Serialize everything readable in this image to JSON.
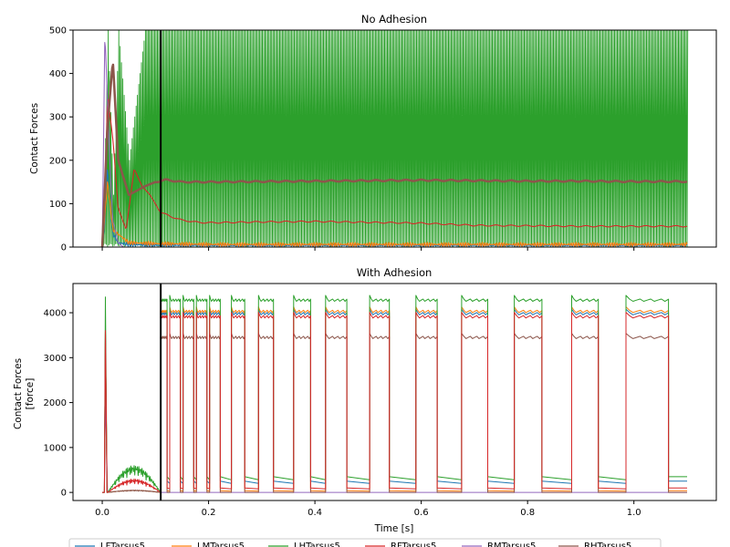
{
  "chart_data": [
    {
      "type": "line",
      "title": "No Adhesion",
      "xlabel": "",
      "ylabel": "Contact Forces",
      "xlim": [
        -0.055,
        1.155
      ],
      "ylim": [
        0,
        500
      ],
      "yticks": [
        0,
        100,
        200,
        300,
        400,
        500
      ],
      "vline_x": 0.11,
      "series": [
        {
          "name": "LFTarsus5",
          "color": "#1f77b4",
          "style": "noisy",
          "x": [
            0.0,
            0.005,
            0.01,
            0.015,
            0.02,
            0.03,
            0.05,
            0.08,
            0.11,
            0.2,
            0.4,
            0.6,
            0.8,
            1.0,
            1.1
          ],
          "y": [
            0,
            60,
            180,
            90,
            30,
            10,
            6,
            5,
            4,
            4,
            4,
            4,
            4,
            4,
            4
          ]
        },
        {
          "name": "LMTarsus5",
          "color": "#ff7f0e",
          "style": "noisy",
          "x": [
            0.0,
            0.01,
            0.02,
            0.05,
            0.1,
            0.2,
            0.4,
            0.6,
            0.8,
            1.0,
            1.1
          ],
          "y": [
            0,
            150,
            40,
            10,
            8,
            6,
            6,
            6,
            6,
            6,
            6
          ]
        },
        {
          "name": "LHTarsus5",
          "color": "#2ca02c",
          "style": "oscillating",
          "x": [
            0.0,
            0.01,
            0.02,
            0.03,
            0.05,
            0.08,
            0.11,
            1.1
          ],
          "y": [
            0,
            500,
            120,
            500,
            200,
            500,
            500,
            500
          ]
        },
        {
          "name": "RFTarsus5",
          "color": "#d62728",
          "style": "smooth",
          "x": [
            0.0,
            0.005,
            0.01,
            0.02,
            0.03,
            0.045,
            0.06,
            0.075,
            0.09,
            0.1,
            0.11,
            0.13,
            0.15,
            0.18,
            0.2,
            0.3,
            0.4,
            0.5,
            0.6,
            0.7,
            0.8,
            0.9,
            1.0,
            1.1
          ],
          "y": [
            0,
            120,
            350,
            250,
            90,
            40,
            180,
            140,
            120,
            100,
            80,
            70,
            62,
            57,
            56,
            58,
            59,
            57,
            55,
            50,
            49,
            48,
            48,
            48
          ]
        },
        {
          "name": "RMTarsus5",
          "color": "#9467bd",
          "style": "smooth",
          "x": [
            0.0,
            0.005,
            0.008,
            0.012,
            0.016,
            0.02,
            0.03,
            0.04,
            0.1,
            1.1
          ],
          "y": [
            0,
            500,
            400,
            260,
            150,
            60,
            10,
            0,
            0,
            0
          ]
        },
        {
          "name": "RHTarsus5",
          "color": "#8c564b",
          "style": "smooth",
          "x": [
            0.0,
            0.01,
            0.02,
            0.03,
            0.05,
            0.08,
            0.1,
            0.12,
            0.15,
            0.2,
            0.3,
            0.4,
            0.5,
            0.6,
            0.7,
            0.8,
            0.9,
            1.0,
            1.1
          ],
          "y": [
            0,
            280,
            430,
            200,
            120,
            140,
            150,
            155,
            150,
            150,
            151,
            152,
            153,
            154,
            153,
            152,
            152,
            151,
            151
          ]
        }
      ]
    },
    {
      "type": "line",
      "title": "With Adhesion",
      "xlabel": "Time [s]",
      "ylabel": "Contact Forces\n[force]",
      "xlim": [
        -0.055,
        1.155
      ],
      "ylim": [
        -180,
        4650
      ],
      "xticks": [
        0.0,
        0.2,
        0.4,
        0.6,
        0.8,
        1.0
      ],
      "xticklabels": [
        "0.0",
        "0.2",
        "0.4",
        "0.6",
        "0.8",
        "1.0"
      ],
      "yticks": [
        0,
        1000,
        2000,
        3000,
        4000
      ],
      "vline_x": 0.11,
      "stance_windows": [
        [
          0.11,
          0.122
        ],
        [
          0.127,
          0.147
        ],
        [
          0.152,
          0.172
        ],
        [
          0.177,
          0.197
        ],
        [
          0.202,
          0.222
        ],
        [
          0.243,
          0.268
        ],
        [
          0.294,
          0.322
        ],
        [
          0.36,
          0.392
        ],
        [
          0.42,
          0.46
        ],
        [
          0.503,
          0.54
        ],
        [
          0.59,
          0.63
        ],
        [
          0.676,
          0.725
        ],
        [
          0.775,
          0.827
        ],
        [
          0.883,
          0.933
        ],
        [
          0.985,
          1.065
        ]
      ],
      "series": [
        {
          "name": "LFTarsus5",
          "color": "#1f77b4",
          "swing": 0,
          "stance": 4000,
          "post_swing": 250
        },
        {
          "name": "LMTarsus5",
          "color": "#ff7f0e",
          "swing": 30,
          "stance": 4050,
          "post_swing": 40
        },
        {
          "name": "LHTarsus5",
          "color": "#2ca02c",
          "swing": 0,
          "stance": 4300,
          "post_swing": 350
        },
        {
          "name": "RFTarsus5",
          "color": "#d62728",
          "swing": 30,
          "stance": 3930,
          "post_swing": 100
        },
        {
          "name": "RMTarsus5",
          "color": "#9467bd",
          "swing": 0,
          "stance": 0,
          "post_swing": 0
        },
        {
          "name": "RHTarsus5",
          "color": "#8c564b",
          "swing": 0,
          "stance": 3470,
          "post_swing": 0
        }
      ]
    }
  ],
  "legend": {
    "placement": "bottom",
    "entries": [
      {
        "label": "LFTarsus5",
        "color": "#1f77b4"
      },
      {
        "label": "LMTarsus5",
        "color": "#ff7f0e"
      },
      {
        "label": "LHTarsus5",
        "color": "#2ca02c"
      },
      {
        "label": "RFTarsus5",
        "color": "#d62728"
      },
      {
        "label": "RMTarsus5",
        "color": "#9467bd"
      },
      {
        "label": "RHTarsus5",
        "color": "#8c564b"
      }
    ]
  }
}
